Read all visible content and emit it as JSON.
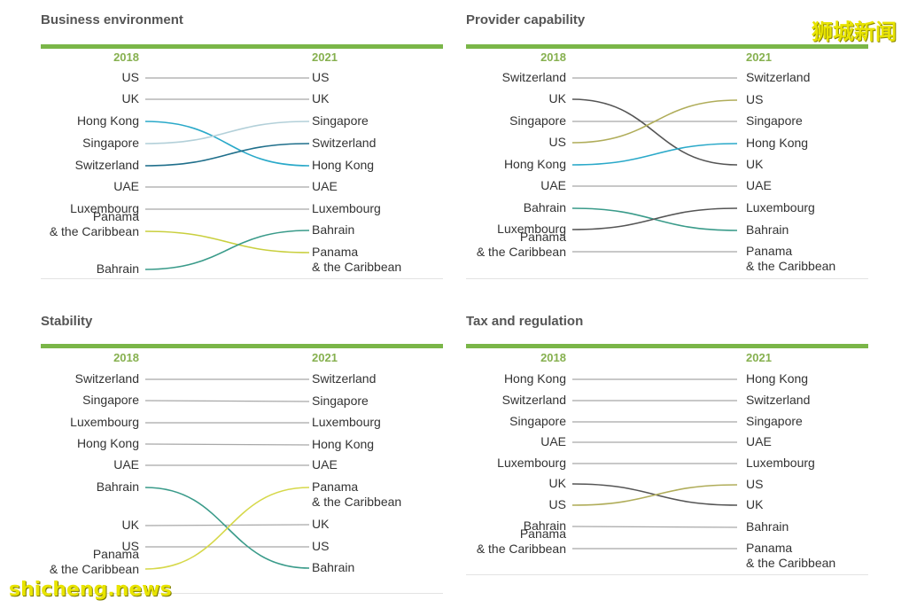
{
  "watermarks": {
    "top_right": "狮城新闻",
    "bottom_left": "shicheng.news"
  },
  "chart_data": [
    {
      "type": "slope",
      "title": "Business environment",
      "left_year": "2018",
      "right_year": "2021",
      "left_labels": [
        "US",
        "UK",
        "Hong Kong",
        "Singapore",
        "Switzerland",
        "UAE",
        "Luxembourg",
        "Panama\n& the Caribbean",
        "Bahrain"
      ],
      "right_labels": [
        "US",
        "UK",
        "Singapore",
        "Switzerland",
        "Hong Kong",
        "UAE",
        "Luxembourg",
        "Bahrain",
        "Panama\n& the Caribbean"
      ],
      "series": [
        {
          "name": "US",
          "from_rank": 1,
          "to_rank": 1,
          "color": "#a8a8a8"
        },
        {
          "name": "UK",
          "from_rank": 2,
          "to_rank": 2,
          "color": "#a8a8a8"
        },
        {
          "name": "Hong Kong",
          "from_rank": 3,
          "to_rank": 5,
          "color": "#2aa9c9"
        },
        {
          "name": "Singapore",
          "from_rank": 4,
          "to_rank": 3,
          "color": "#b3d0d9"
        },
        {
          "name": "Switzerland",
          "from_rank": 5,
          "to_rank": 4,
          "color": "#1f6f8b"
        },
        {
          "name": "UAE",
          "from_rank": 6,
          "to_rank": 6,
          "color": "#a8a8a8"
        },
        {
          "name": "Luxembourg",
          "from_rank": 7,
          "to_rank": 7,
          "color": "#a8a8a8"
        },
        {
          "name": "Panama & the Caribbean",
          "from_rank": 8,
          "to_rank": 9,
          "color": "#c9cf3e"
        },
        {
          "name": "Bahrain",
          "from_rank": 9,
          "to_rank": 8,
          "color": "#3a9b8a"
        }
      ]
    },
    {
      "type": "slope",
      "title": "Provider capability",
      "left_year": "2018",
      "right_year": "2021",
      "left_labels": [
        "Switzerland",
        "UK",
        "Singapore",
        "US",
        "Hong Kong",
        "UAE",
        "Bahrain",
        "Luxembourg",
        "Panama\n& the Caribbean"
      ],
      "right_labels": [
        "Switzerland",
        "US",
        "Singapore",
        "Hong Kong",
        "UK",
        "UAE",
        "Luxembourg",
        "Bahrain",
        "Panama\n& the Caribbean"
      ],
      "series": [
        {
          "name": "Switzerland",
          "from_rank": 1,
          "to_rank": 1,
          "color": "#a8a8a8"
        },
        {
          "name": "UK",
          "from_rank": 2,
          "to_rank": 5,
          "color": "#555555"
        },
        {
          "name": "Singapore",
          "from_rank": 3,
          "to_rank": 3,
          "color": "#a8a8a8"
        },
        {
          "name": "US",
          "from_rank": 4,
          "to_rank": 2,
          "color": "#b0ad5a"
        },
        {
          "name": "Hong Kong",
          "from_rank": 5,
          "to_rank": 4,
          "color": "#2aa9c9"
        },
        {
          "name": "UAE",
          "from_rank": 6,
          "to_rank": 6,
          "color": "#a8a8a8"
        },
        {
          "name": "Bahrain",
          "from_rank": 7,
          "to_rank": 8,
          "color": "#3a9b8a"
        },
        {
          "name": "Luxembourg",
          "from_rank": 8,
          "to_rank": 7,
          "color": "#555555"
        },
        {
          "name": "Panama & the Caribbean",
          "from_rank": 9,
          "to_rank": 9,
          "color": "#a8a8a8"
        }
      ]
    },
    {
      "type": "slope",
      "title": "Stability",
      "left_year": "2018",
      "right_year": "2021",
      "left_labels": [
        "Switzerland",
        "Singapore",
        "Luxembourg",
        "Hong Kong",
        "UAE",
        "Bahrain",
        "UK",
        "US",
        "Panama\n& the Caribbean"
      ],
      "right_labels": [
        "Switzerland",
        "Singapore",
        "Luxembourg",
        "Hong Kong",
        "UAE",
        "Panama\n& the Caribbean",
        "UK",
        "US",
        "Bahrain"
      ],
      "series": [
        {
          "name": "Switzerland",
          "from_rank": 1,
          "to_rank": 1,
          "color": "#a8a8a8"
        },
        {
          "name": "Singapore",
          "from_rank": 2,
          "to_rank": 2,
          "color": "#a8a8a8"
        },
        {
          "name": "Luxembourg",
          "from_rank": 3,
          "to_rank": 3,
          "color": "#a8a8a8"
        },
        {
          "name": "Hong Kong",
          "from_rank": 4,
          "to_rank": 4,
          "color": "#a8a8a8"
        },
        {
          "name": "UAE",
          "from_rank": 5,
          "to_rank": 5,
          "color": "#a8a8a8"
        },
        {
          "name": "Bahrain",
          "from_rank": 6,
          "to_rank": 9,
          "color": "#3a9b8a"
        },
        {
          "name": "UK",
          "from_rank": 7,
          "to_rank": 7,
          "color": "#a8a8a8"
        },
        {
          "name": "US",
          "from_rank": 8,
          "to_rank": 8,
          "color": "#a8a8a8"
        },
        {
          "name": "Panama & the Caribbean",
          "from_rank": 9,
          "to_rank": 6,
          "color": "#d6d84a"
        }
      ]
    },
    {
      "type": "slope",
      "title": "Tax and regulation",
      "left_year": "2018",
      "right_year": "2021",
      "left_labels": [
        "Hong Kong",
        "Switzerland",
        "Singapore",
        "UAE",
        "Luxembourg",
        "UK",
        "US",
        "Bahrain",
        "Panama\n& the Caribbean"
      ],
      "right_labels": [
        "Hong Kong",
        "Switzerland",
        "Singapore",
        "UAE",
        "Luxembourg",
        "US",
        "UK",
        "Bahrain",
        "Panama\n& the Caribbean"
      ],
      "series": [
        {
          "name": "Hong Kong",
          "from_rank": 1,
          "to_rank": 1,
          "color": "#a8a8a8"
        },
        {
          "name": "Switzerland",
          "from_rank": 2,
          "to_rank": 2,
          "color": "#a8a8a8"
        },
        {
          "name": "Singapore",
          "from_rank": 3,
          "to_rank": 3,
          "color": "#a8a8a8"
        },
        {
          "name": "UAE",
          "from_rank": 4,
          "to_rank": 4,
          "color": "#a8a8a8"
        },
        {
          "name": "Luxembourg",
          "from_rank": 5,
          "to_rank": 5,
          "color": "#a8a8a8"
        },
        {
          "name": "UK",
          "from_rank": 6,
          "to_rank": 7,
          "color": "#555555"
        },
        {
          "name": "US",
          "from_rank": 7,
          "to_rank": 6,
          "color": "#b0ad5a"
        },
        {
          "name": "Bahrain",
          "from_rank": 8,
          "to_rank": 8,
          "color": "#a8a8a8"
        },
        {
          "name": "Panama & the Caribbean",
          "from_rank": 9,
          "to_rank": 9,
          "color": "#a8a8a8"
        }
      ]
    }
  ]
}
